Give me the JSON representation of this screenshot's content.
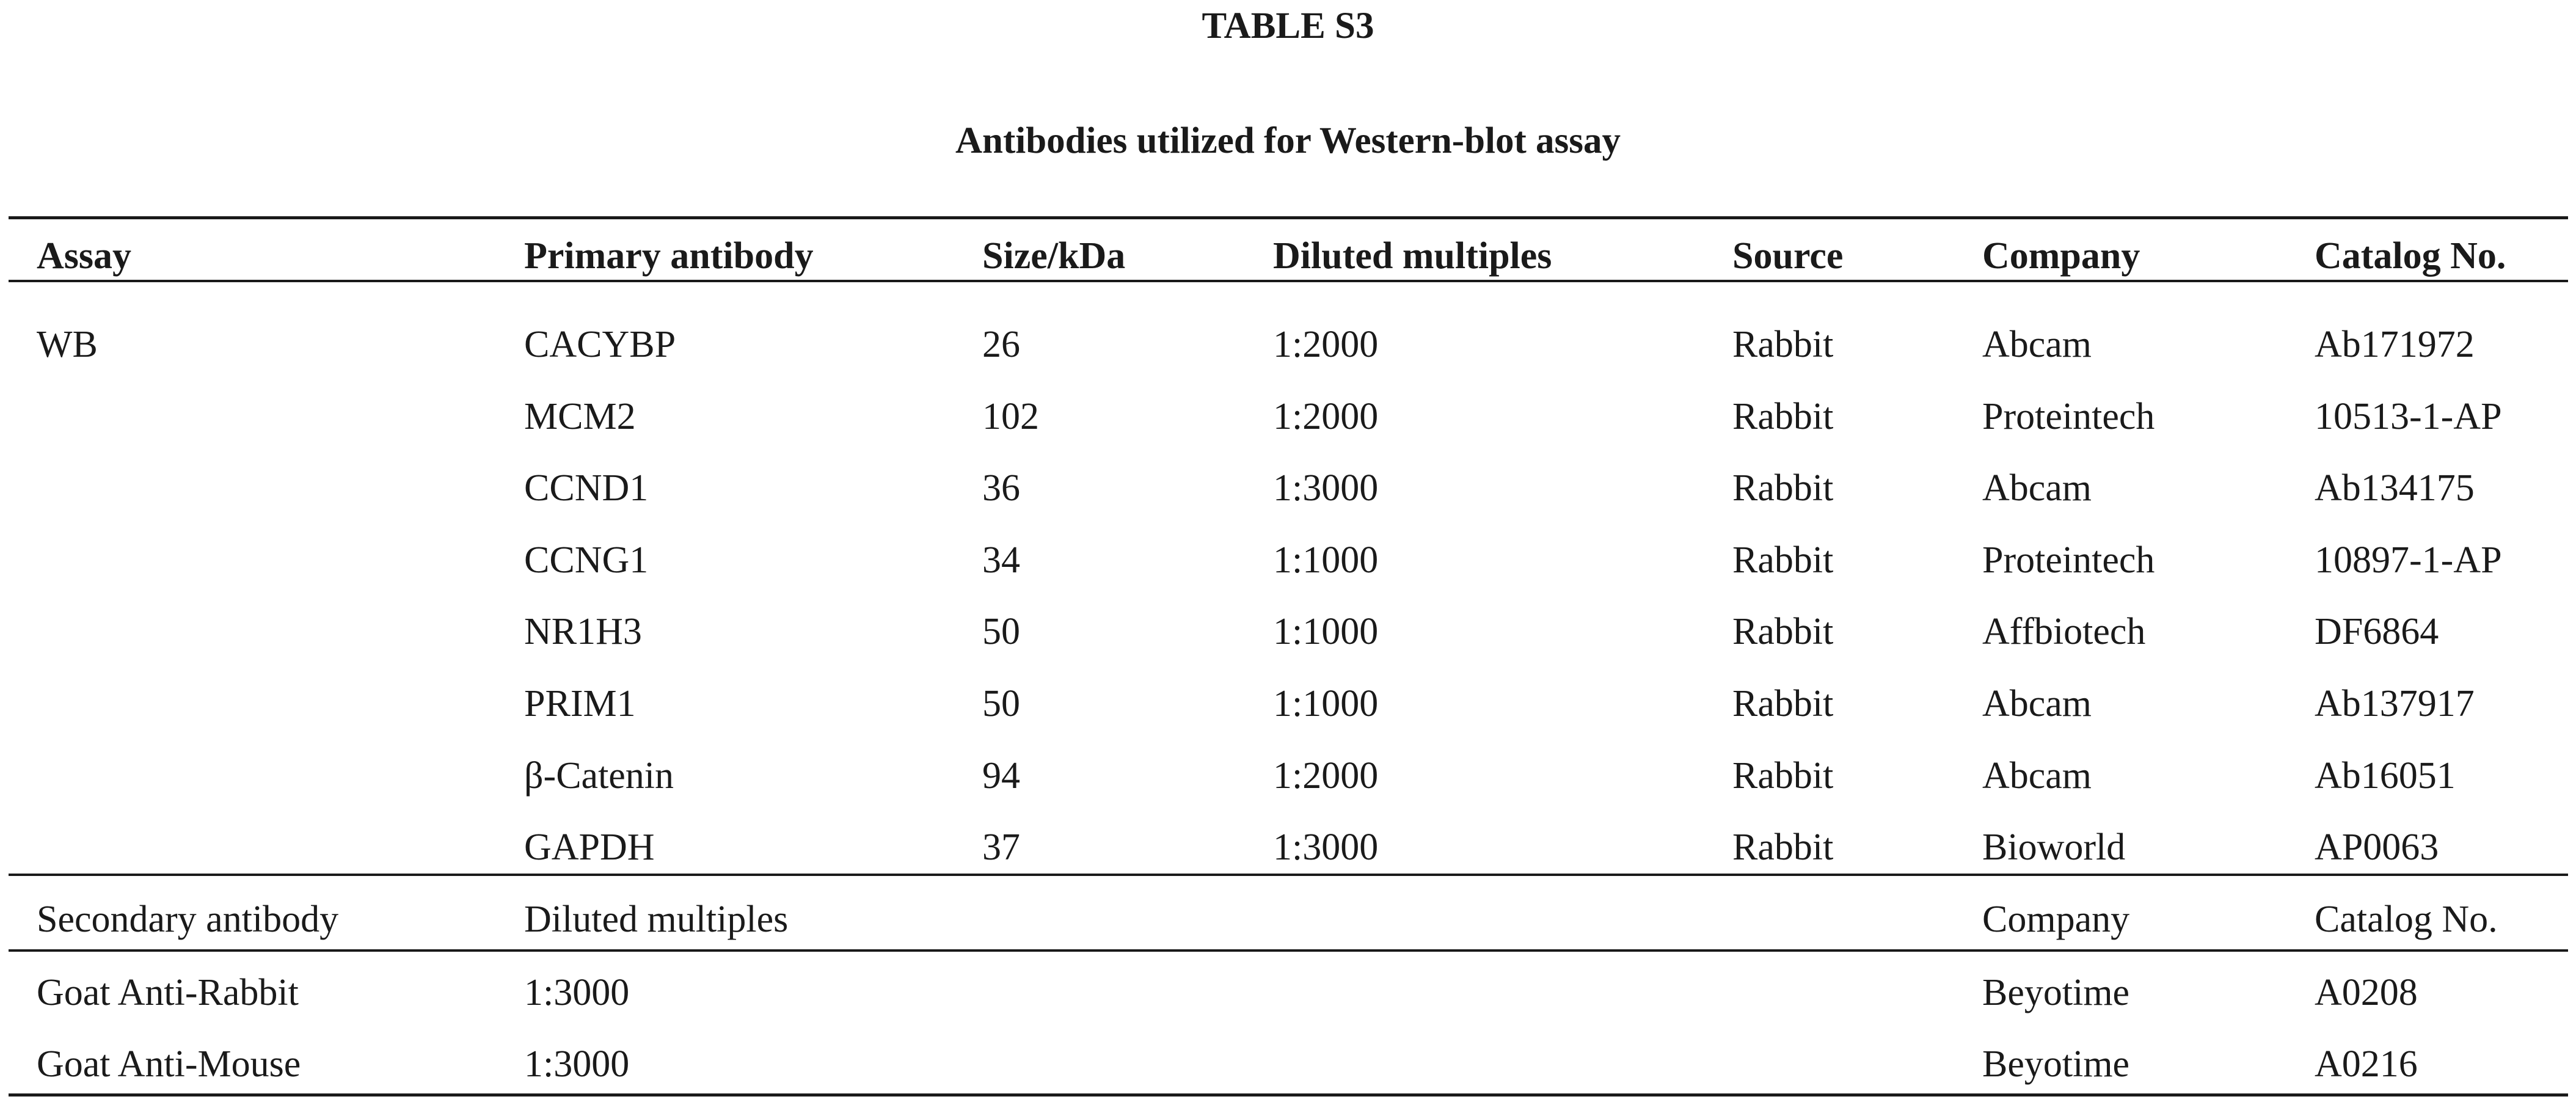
{
  "table": {
    "label": "TABLE S3",
    "caption": "Antibodies utilized for Western-blot assay",
    "primary_headers": [
      "Assay",
      "Primary antibody",
      "Size/kDa",
      "Diluted multiples",
      "Source",
      "Company",
      "Catalog No."
    ],
    "assay_label": "WB",
    "primary_rows": [
      [
        "CACYBP",
        "26",
        "1:2000",
        "Rabbit",
        "Abcam",
        "Ab171972"
      ],
      [
        "MCM2",
        "102",
        "1:2000",
        "Rabbit",
        "Proteintech",
        "10513-1-AP"
      ],
      [
        "CCND1",
        "36",
        "1:3000",
        "Rabbit",
        "Abcam",
        "Ab134175"
      ],
      [
        "CCNG1",
        "34",
        "1:1000",
        "Rabbit",
        "Proteintech",
        "10897-1-AP"
      ],
      [
        "NR1H3",
        "50",
        "1:1000",
        "Rabbit",
        "Affbiotech",
        "DF6864"
      ],
      [
        "PRIM1",
        "50",
        "1:1000",
        "Rabbit",
        "Abcam",
        "Ab137917"
      ],
      [
        "β-Catenin",
        "94",
        "1:2000",
        "Rabbit",
        "Abcam",
        "Ab16051"
      ],
      [
        "GAPDH",
        "37",
        "1:3000",
        "Rabbit",
        "Bioworld",
        "AP0063"
      ]
    ],
    "secondary_headers": {
      "antibody": "Secondary antibody",
      "diluted": "Diluted multiples",
      "company": "Company",
      "catalog": "Catalog No."
    },
    "secondary_rows": [
      [
        "Goat Anti-Rabbit",
        "1:3000",
        "Beyotime",
        "A0208"
      ],
      [
        "Goat Anti-Mouse",
        "1:3000",
        "Beyotime",
        "A0216"
      ]
    ]
  }
}
